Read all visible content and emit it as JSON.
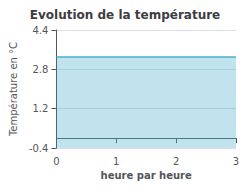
{
  "chart_data": {
    "type": "area",
    "title": "Evolution de la température",
    "xlabel": "heure par heure",
    "ylabel": "Température en °C",
    "x": [
      0,
      3
    ],
    "values": [
      3.3,
      3.3
    ],
    "color": "#4ab0cc",
    "xlim": [
      0,
      3
    ],
    "ylim": [
      -0.4,
      4.4
    ],
    "xticks": [
      0,
      1,
      2,
      3
    ],
    "yticks": [
      -0.4,
      1.2,
      2.8,
      4.4
    ],
    "grid": "y"
  }
}
